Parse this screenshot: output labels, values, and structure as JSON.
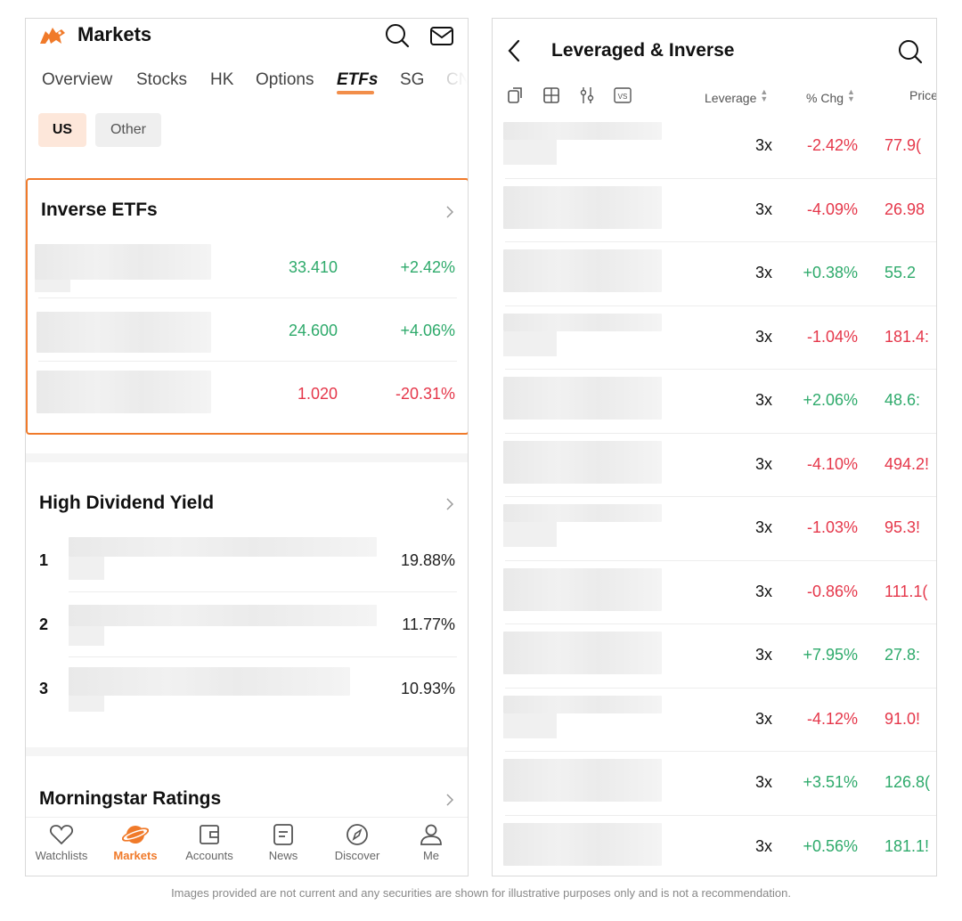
{
  "left": {
    "brand_title": "Markets",
    "tabs": [
      "Overview",
      "Stocks",
      "HK",
      "Options",
      "ETFs",
      "SG",
      "CN"
    ],
    "active_tab": "ETFs",
    "chips": {
      "us": "US",
      "other": "Other"
    },
    "inverse": {
      "title": "Inverse ETFs",
      "rows": [
        {
          "price": "33.410",
          "change": "+2.42%"
        },
        {
          "price": "24.600",
          "change": "+4.06%"
        },
        {
          "price": "1.020",
          "change": "-20.31%"
        }
      ]
    },
    "dividend": {
      "title": "High Dividend Yield",
      "rows": [
        {
          "rank": "1",
          "yield": "19.88%"
        },
        {
          "rank": "2",
          "yield": "11.77%"
        },
        {
          "rank": "3",
          "yield": "10.93%"
        }
      ]
    },
    "morningstar": {
      "title": "Morningstar Ratings"
    },
    "nav": [
      {
        "label": "Watchlists",
        "icon": "heart-icon"
      },
      {
        "label": "Markets",
        "icon": "planet-icon"
      },
      {
        "label": "Accounts",
        "icon": "wallet-icon"
      },
      {
        "label": "News",
        "icon": "news-icon"
      },
      {
        "label": "Discover",
        "icon": "compass-icon"
      },
      {
        "label": "Me",
        "icon": "person-icon"
      }
    ],
    "active_nav": "Markets"
  },
  "right": {
    "title": "Leveraged & Inverse",
    "columns": {
      "leverage": "Leverage",
      "chg": "% Chg",
      "price": "Price"
    },
    "rows": [
      {
        "leverage": "3x",
        "chg": "-2.42%",
        "price": "77.9("
      },
      {
        "leverage": "3x",
        "chg": "-4.09%",
        "price": "26.98"
      },
      {
        "leverage": "3x",
        "chg": "+0.38%",
        "price": "55.2"
      },
      {
        "leverage": "3x",
        "chg": "-1.04%",
        "price": "181.4:"
      },
      {
        "leverage": "3x",
        "chg": "+2.06%",
        "price": "48.6:"
      },
      {
        "leverage": "3x",
        "chg": "-4.10%",
        "price": "494.2!"
      },
      {
        "leverage": "3x",
        "chg": "-1.03%",
        "price": "95.3!"
      },
      {
        "leverage": "3x",
        "chg": "-0.86%",
        "price": "111.1("
      },
      {
        "leverage": "3x",
        "chg": "+7.95%",
        "price": "27.8:"
      },
      {
        "leverage": "3x",
        "chg": "-4.12%",
        "price": "91.0!"
      },
      {
        "leverage": "3x",
        "chg": "+3.51%",
        "price": "126.8("
      },
      {
        "leverage": "3x",
        "chg": "+0.56%",
        "price": "181.1!"
      }
    ]
  },
  "colors": {
    "accent": "#f07a2a",
    "up": "#2eaa6b",
    "down": "#e5374a"
  },
  "disclaimer": "Images provided are not current and any securities are shown for illustrative purposes only and is not a recommendation."
}
